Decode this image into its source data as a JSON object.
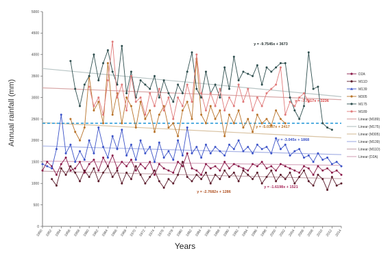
{
  "chart_data": {
    "type": "line",
    "xlabel": "Years",
    "ylabel": "Annual rainfall (mm)",
    "ylim": [
      0,
      5000
    ],
    "yticks": [
      0,
      500,
      1000,
      1500,
      2000,
      2500,
      3000,
      3500,
      4000,
      4500,
      5000
    ],
    "x_start": 1950,
    "x_end": 2014,
    "xticks": [
      1950,
      1952,
      1954,
      1956,
      1958,
      1960,
      1962,
      1964,
      1966,
      1968,
      1970,
      1972,
      1974,
      1976,
      1978,
      1980,
      1982,
      1984,
      1986,
      1988,
      1990,
      1992,
      1994,
      1996,
      1998,
      2000,
      2002,
      2004,
      2006,
      2008,
      2010,
      2012,
      2014
    ],
    "grid": false,
    "legend_position": "right",
    "legend": [
      {
        "label": "D2A",
        "color": "#8b1a4a",
        "marker": "circle",
        "style": "solid"
      },
      {
        "label": "M11D",
        "color": "#5a1a2a",
        "marker": "circle",
        "style": "solid"
      },
      {
        "label": "M139",
        "color": "#3a52c8",
        "marker": "triangle",
        "style": "solid"
      },
      {
        "label": "M305",
        "color": "#b8732a",
        "marker": "circle",
        "style": "solid"
      },
      {
        "label": "M175",
        "color": "#2f4f4f",
        "marker": "circle",
        "style": "solid"
      },
      {
        "label": "M189",
        "color": "#e07a7a",
        "marker": "circle",
        "style": "solid"
      },
      {
        "label": "Linear (M189)",
        "color": "#d8a7a7",
        "style": "trend"
      },
      {
        "label": "Linear (M175)",
        "color": "#b7c4c4",
        "style": "trend"
      },
      {
        "label": "Linear (M305)",
        "color": "#d9c3a3",
        "style": "trend"
      },
      {
        "label": "Linear (M139)",
        "color": "#a9b4e6",
        "style": "trend"
      },
      {
        "label": "Linear (M11D)",
        "color": "#c7a9b0",
        "style": "trend"
      },
      {
        "label": "Linear (D2A)",
        "color": "#d7a9bf",
        "style": "trend"
      }
    ],
    "reference_line": {
      "y": 2400,
      "color": "#2a9bd8",
      "style": "dashed"
    },
    "annotations": [
      {
        "text": "y = -9.7545x + 3673",
        "color": "#1e2a2a"
      },
      {
        "text": "y = -7.7917x + 3236",
        "color": "#d84040"
      },
      {
        "text": "y = -5.0387x + 2417",
        "color": "#b87020"
      },
      {
        "text": "y = -3.045x + 1868",
        "color": "#3a52c8"
      },
      {
        "text": "y = -2.7682x + 1286",
        "color": "#b05020"
      },
      {
        "text": "y = -1.6198x + 1521",
        "color": "#a8285a"
      }
    ],
    "series": [
      {
        "name": "D2A",
        "color": "#8b1a4a",
        "x": [
          1950,
          1951,
          1952,
          1953,
          1954,
          1955,
          1956,
          1957,
          1958,
          1959,
          1960,
          1961,
          1962,
          1963,
          1964,
          1965,
          1966,
          1967,
          1968,
          1969,
          1970,
          1971,
          1972,
          1973,
          1974,
          1975,
          1976,
          1977,
          1978,
          1979,
          1980,
          1981,
          1982,
          1983,
          1984,
          1985,
          1986,
          1987,
          1988,
          1989,
          1990,
          1991,
          1992,
          1993,
          1994,
          1995,
          1996,
          1997,
          1998,
          1999,
          2000,
          2001,
          2002,
          2003,
          2004,
          2005,
          2006,
          2007,
          2008,
          2009,
          2010,
          2011,
          2012,
          2013,
          2014
        ],
        "y": [
          1300,
          1500,
          1400,
          1200,
          1450,
          1600,
          1300,
          1350,
          1500,
          1250,
          1450,
          1550,
          1300,
          1600,
          1400,
          1650,
          1350,
          1500,
          1400,
          1550,
          1300,
          1450,
          1350,
          1500,
          1200,
          1450,
          1350,
          1300,
          1250,
          1500,
          1400,
          1700,
          1350,
          1300,
          1200,
          1450,
          1350,
          1400,
          1300,
          1500,
          1350,
          1450,
          1400,
          1350,
          1300,
          1450,
          1400,
          1500,
          1350,
          1400,
          1300,
          1450,
          1400,
          1350,
          1300,
          1250,
          1400,
          1350,
          1200,
          1400,
          1300,
          1350,
          1250,
          1300,
          1200
        ]
      },
      {
        "name": "M11D",
        "color": "#5a1a2a",
        "x": [
          1952,
          1953,
          1954,
          1955,
          1956,
          1957,
          1958,
          1959,
          1960,
          1961,
          1962,
          1963,
          1964,
          1965,
          1966,
          1967,
          1968,
          1969,
          1970,
          1971,
          1972,
          1973,
          1974,
          1975,
          1976,
          1977,
          1978,
          1979,
          1980,
          1981,
          1982,
          1983,
          1984,
          1985,
          1986,
          1987,
          1988,
          1989,
          1990,
          1991,
          1992,
          1993,
          1994,
          1995,
          1996,
          1997,
          1998,
          1999,
          2000,
          2001,
          2002,
          2003,
          2004,
          2005,
          2006,
          2007,
          2008,
          2009,
          2010,
          2011,
          2012,
          2013,
          2014
        ],
        "y": [
          1100,
          950,
          1350,
          1200,
          1400,
          1250,
          1050,
          1300,
          1150,
          1350,
          1050,
          1250,
          1400,
          1150,
          1300,
          1000,
          1250,
          1100,
          1400,
          1200,
          1000,
          1150,
          1300,
          1050,
          900,
          1100,
          1000,
          1200,
          1500,
          1150,
          1050,
          1200,
          1100,
          1250,
          1000,
          1200,
          1100,
          1300,
          1150,
          1250,
          1050,
          1300,
          1200,
          1100,
          1250,
          1000,
          1150,
          1300,
          1050,
          1200,
          1100,
          1250,
          1000,
          1150,
          1300,
          1050,
          950,
          1200,
          1100,
          850,
          1150,
          950,
          1000
        ]
      },
      {
        "name": "M139",
        "color": "#3a52c8",
        "x": [
          1950,
          1951,
          1952,
          1953,
          1954,
          1955,
          1956,
          1957,
          1958,
          1959,
          1960,
          1961,
          1962,
          1963,
          1964,
          1965,
          1966,
          1967,
          1968,
          1969,
          1970,
          1971,
          1972,
          1973,
          1974,
          1975,
          1976,
          1977,
          1978,
          1979,
          1980,
          1981,
          1982,
          1983,
          1984,
          1985,
          1986,
          1987,
          1988,
          1989,
          1990,
          1991,
          1992,
          1993,
          1994,
          1995,
          1996,
          1997,
          1998,
          1999,
          2000,
          2001,
          2002,
          2003,
          2004,
          2005,
          2006,
          2007,
          2008,
          2009,
          2010,
          2011,
          2012,
          2013,
          2014
        ],
        "y": [
          1450,
          1400,
          1350,
          1800,
          2600,
          1700,
          1900,
          1500,
          1750,
          1550,
          2000,
          1700,
          2300,
          1850,
          1600,
          2100,
          1800,
          2250,
          1650,
          1900,
          1550,
          2000,
          1700,
          1850,
          1500,
          1950,
          1600,
          1750,
          1550,
          2000,
          1650,
          2300,
          1700,
          1850,
          1600,
          1900,
          1700,
          1850,
          1750,
          1650,
          1900,
          1800,
          2000,
          1750,
          1850,
          1700,
          1900,
          1800,
          1850,
          1700,
          2050,
          1800,
          1900,
          1650,
          1750,
          1800,
          1600,
          1650,
          1500,
          1700,
          1550,
          1600,
          1450,
          1500,
          1400
        ]
      },
      {
        "name": "M305",
        "color": "#b8732a",
        "x": [
          1956,
          1957,
          1958,
          1959,
          1960,
          1961,
          1962,
          1963,
          1964,
          1965,
          1966,
          1967,
          1968,
          1969,
          1970,
          1971,
          1972,
          1973,
          1974,
          1975,
          1976,
          1977,
          1978,
          1979,
          1980,
          1981,
          1982,
          1983,
          1984,
          1985,
          1986,
          1987,
          1988,
          1989,
          1990,
          1991,
          1992,
          1993,
          1994,
          1995,
          1996,
          1997,
          1998,
          1999,
          2000,
          2001,
          2002
        ],
        "y": [
          2500,
          2200,
          2000,
          2300,
          3500,
          2700,
          2900,
          2400,
          3800,
          2600,
          3100,
          2400,
          3000,
          2800,
          2300,
          2900,
          2500,
          2700,
          2200,
          2600,
          2800,
          2300,
          2400,
          2100,
          2700,
          2900,
          2500,
          3900,
          2600,
          2400,
          2800,
          2500,
          2700,
          2100,
          2600,
          2400,
          2700,
          2300,
          2500,
          2200,
          2600,
          2400,
          2500,
          2350,
          2700,
          2500,
          2400
        ]
      },
      {
        "name": "M175",
        "color": "#2f4f4f",
        "x": [
          1956,
          1957,
          1958,
          1959,
          1960,
          1961,
          1962,
          1963,
          1964,
          1965,
          1966,
          1967,
          1968,
          1969,
          1970,
          1971,
          1972,
          1973,
          1974,
          1975,
          1976,
          1977,
          1978,
          1979,
          1980,
          1981,
          1982,
          1983,
          1984,
          1985,
          1986,
          1987,
          1988,
          1989,
          1990,
          1991,
          1992,
          1993,
          1994,
          1995,
          1996,
          1997,
          1998,
          1999,
          2000,
          2001,
          2002,
          2003,
          2004,
          2005,
          2006,
          2007,
          2008,
          2009,
          2010,
          2011,
          2012
        ],
        "y": [
          3850,
          3200,
          2800,
          3300,
          3500,
          4000,
          3400,
          3800,
          4100,
          3600,
          3300,
          4200,
          3100,
          3600,
          3000,
          3400,
          3300,
          3200,
          3500,
          3000,
          3400,
          3100,
          2900,
          3300,
          3100,
          3600,
          4050,
          3200,
          3000,
          3600,
          3100,
          3300,
          3000,
          3700,
          3200,
          3950,
          3400,
          3600,
          3550,
          3500,
          3750,
          3300,
          3700,
          3600,
          3700,
          3800,
          3800,
          3000,
          2700,
          2500,
          2800,
          4050,
          3200,
          3250,
          2400,
          2300,
          2250
        ]
      },
      {
        "name": "M189",
        "color": "#e07a7a",
        "x": [
          1960,
          1961,
          1962,
          1963,
          1964,
          1965,
          1966,
          1967,
          1968,
          1969,
          1970,
          1971,
          1972,
          1973,
          1974,
          1975,
          1976,
          1977,
          1978,
          1979,
          1980,
          1981,
          1982,
          1983,
          1984,
          1985,
          1986,
          1987,
          1988,
          1989,
          1990,
          1991,
          1992,
          1993,
          1994,
          1995,
          1996,
          1997,
          1998,
          1999,
          2000,
          2001,
          2002,
          2003,
          2004,
          2005,
          2006,
          2007
        ],
        "y": [
          3250,
          2800,
          3000,
          2600,
          3400,
          4300,
          3000,
          3300,
          2700,
          3500,
          2900,
          3000,
          2600,
          3100,
          2800,
          3200,
          2700,
          3000,
          2500,
          3000,
          2800,
          3300,
          2900,
          4000,
          3100,
          2700,
          3100,
          2800,
          3200,
          2700,
          3000,
          2800,
          3300,
          2900,
          3200,
          2700,
          3000,
          2800,
          3100,
          3200,
          3300,
          3700,
          2600,
          2900,
          2800,
          3000,
          3100,
          2900
        ]
      }
    ],
    "trends": [
      {
        "name": "Linear (M189)",
        "color": "#d8a7a7",
        "x1": 1950,
        "y1": 3225,
        "x2": 2014,
        "y2": 2950
      },
      {
        "name": "Linear (M175)",
        "color": "#b7c4c4",
        "x1": 1950,
        "y1": 3675,
        "x2": 2014,
        "y2": 3020
      },
      {
        "name": "Linear (M305)",
        "color": "#d9c3a3",
        "x1": 1950,
        "y1": 2415,
        "x2": 2014,
        "y2": 2060
      },
      {
        "name": "Linear (M139)",
        "color": "#a9b4e6",
        "x1": 1950,
        "y1": 1870,
        "x2": 2014,
        "y2": 1670
      },
      {
        "name": "Linear (M11D)",
        "color": "#c7a9b0",
        "x1": 1950,
        "y1": 1285,
        "x2": 2014,
        "y2": 1110
      },
      {
        "name": "Linear (D2A)",
        "color": "#d7a9bf",
        "x1": 1950,
        "y1": 1520,
        "x2": 2014,
        "y2": 1420
      }
    ]
  }
}
